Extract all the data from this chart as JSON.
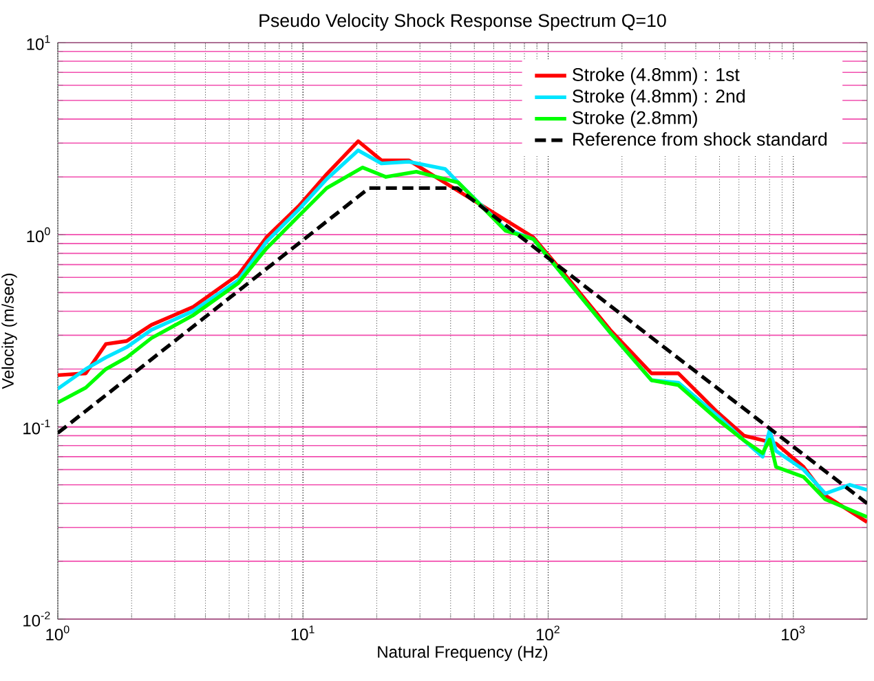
{
  "chart_data": {
    "type": "line",
    "title": "Pseudo Velocity Shock Response Spectrum Q=10",
    "xlabel": "Natural Frequency (Hz)",
    "ylabel": "Velocity (m/sec)",
    "log": "xy",
    "grid": true,
    "legend": "top right",
    "xlim": [
      1,
      2000
    ],
    "ylim": [
      0.01,
      10
    ],
    "xticks": [
      {
        "value": 1,
        "label": "10$^{0}$"
      },
      {
        "value": 10,
        "label": "10$^{1}$"
      },
      {
        "value": 100,
        "label": "10$^{2}$"
      },
      {
        "value": 1000,
        "label": "10$^{3}$"
      }
    ],
    "yticks": [
      {
        "value": 0.01,
        "label": "10$^{-2}$"
      },
      {
        "value": 0.1,
        "label": "10$^{-1}$"
      },
      {
        "value": 1,
        "label": "10$^{0}$"
      },
      {
        "value": 10,
        "label": "10$^{1}$"
      }
    ],
    "series": [
      {
        "name": "Stroke (4.8mm) : 1st",
        "color": "#ff0000",
        "x": [
          1,
          1.3,
          1.57,
          1.91,
          2.41,
          3.55,
          5.45,
          7.1,
          9.6,
          12.5,
          16.8,
          20.9,
          27,
          38,
          43,
          67,
          87,
          117,
          179,
          264,
          340,
          488,
          630,
          850,
          1100,
          1350,
          2000
        ],
        "values": [
          0.186,
          0.19,
          0.27,
          0.28,
          0.34,
          0.42,
          0.62,
          0.97,
          1.41,
          2.07,
          3.07,
          2.44,
          2.44,
          null,
          null,
          null,
          0.97,
          0.62,
          0.32,
          0.19,
          0.19,
          0.12,
          0.09,
          0.082,
          0.062,
          0.044,
          0.032
        ]
      },
      {
        "name": "Stroke (4.8mm) : 2nd",
        "color": "#00e5ff",
        "x": [
          1,
          1.3,
          1.57,
          1.91,
          2.41,
          3.55,
          5.45,
          7.1,
          9.6,
          12.5,
          16.8,
          20.9,
          27,
          38,
          43,
          67,
          87,
          117,
          179,
          264,
          340,
          488,
          630,
          750,
          800,
          850,
          1100,
          1350,
          1700,
          2000
        ],
        "values": [
          0.158,
          0.2,
          0.23,
          0.26,
          0.32,
          0.4,
          0.58,
          0.92,
          1.35,
          1.95,
          2.75,
          2.35,
          2.4,
          2.2,
          1.87,
          1.07,
          0.95,
          0.6,
          0.31,
          0.175,
          0.17,
          0.115,
          0.085,
          0.07,
          0.096,
          0.075,
          0.06,
          0.045,
          0.05,
          0.047
        ]
      },
      {
        "name": "Stroke (2.8mm)",
        "color": "#00ff00",
        "x": [
          1,
          1.3,
          1.57,
          1.91,
          2.41,
          3.55,
          5.45,
          7.1,
          9.6,
          12.5,
          17.5,
          21.8,
          29,
          43,
          67,
          87,
          117,
          179,
          264,
          340,
          488,
          630,
          750,
          800,
          850,
          1100,
          1350,
          2000
        ],
        "values": [
          0.134,
          0.16,
          0.2,
          0.23,
          0.29,
          0.38,
          0.56,
          0.85,
          1.25,
          1.75,
          2.24,
          2.0,
          2.13,
          1.87,
          1.05,
          0.95,
          0.6,
          0.31,
          0.175,
          0.165,
          0.11,
          0.085,
          0.073,
          0.086,
          0.062,
          0.055,
          0.042,
          0.034
        ]
      },
      {
        "name": "Reference from shock standard",
        "color": "#000000",
        "line_style": "dashed",
        "x": [
          1,
          18.6,
          42.6,
          2000
        ],
        "values": [
          0.093,
          1.75,
          1.75,
          0.04
        ]
      }
    ]
  }
}
